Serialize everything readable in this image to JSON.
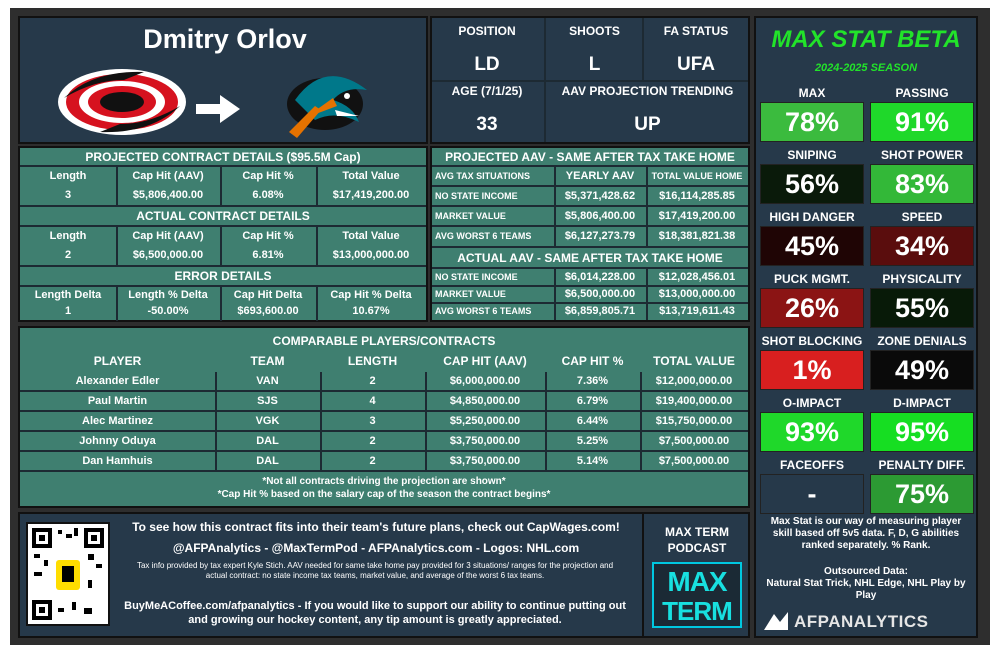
{
  "player": {
    "name": "Dmitry Orlov"
  },
  "bio": {
    "position_label": "POSITION",
    "position": "LD",
    "shoots_label": "SHOOTS",
    "shoots": "L",
    "fa_label": "FA STATUS",
    "fa": "UFA",
    "age_label": "AGE (7/1/25)",
    "age": "33",
    "trend_label": "AAV PROJECTION TRENDING",
    "trend": "UP"
  },
  "projected": {
    "title": "PROJECTED CONTRACT DETAILS ($95.5M Cap)",
    "headers": [
      "Length",
      "Cap Hit (AAV)",
      "Cap Hit %",
      "Total Value"
    ],
    "row": [
      "3",
      "$5,806,400.00",
      "6.08%",
      "$17,419,200.00"
    ]
  },
  "actual": {
    "title": "ACTUAL CONTRACT DETAILS",
    "headers": [
      "Length",
      "Cap Hit (AAV)",
      "Cap Hit %",
      "Total Value"
    ],
    "row": [
      "2",
      "$6,500,000.00",
      "6.81%",
      "$13,000,000.00"
    ]
  },
  "error": {
    "title": "ERROR DETAILS",
    "headers": [
      "Length Delta",
      "Length % Delta",
      "Cap Hit Delta",
      "Cap Hit % Delta"
    ],
    "row": [
      "1",
      "-50.00%",
      "$693,600.00",
      "10.67%"
    ]
  },
  "tax_projected": {
    "title": "PROJECTED AAV - SAME AFTER TAX TAKE HOME",
    "headers": [
      "AVG TAX SITUATIONS",
      "YEARLY AAV",
      "TOTAL VALUE HOME"
    ],
    "rows": [
      [
        "NO STATE INCOME",
        "$5,371,428.62",
        "$16,114,285.85"
      ],
      [
        "MARKET VALUE",
        "$5,806,400.00",
        "$17,419,200.00"
      ],
      [
        "AVG WORST 6 TEAMS",
        "$6,127,273.79",
        "$18,381,821.38"
      ]
    ]
  },
  "tax_actual": {
    "title": "ACTUAL AAV - SAME AFTER TAX TAKE HOME",
    "rows": [
      [
        "NO STATE INCOME",
        "$6,014,228.00",
        "$12,028,456.01"
      ],
      [
        "MARKET VALUE",
        "$6,500,000.00",
        "$13,000,000.00"
      ],
      [
        "AVG WORST 6 TEAMS",
        "$6,859,805.71",
        "$13,719,611.43"
      ]
    ]
  },
  "comparables": {
    "title": "COMPARABLE PLAYERS/CONTRACTS",
    "headers": [
      "PLAYER",
      "TEAM",
      "LENGTH",
      "CAP HIT (AAV)",
      "CAP HIT %",
      "TOTAL VALUE"
    ],
    "rows": [
      [
        "Alexander Edler",
        "VAN",
        "2",
        "$6,000,000.00",
        "7.36%",
        "$12,000,000.00"
      ],
      [
        "Paul Martin",
        "SJS",
        "4",
        "$4,850,000.00",
        "6.79%",
        "$19,400,000.00"
      ],
      [
        "Alec Martinez",
        "VGK",
        "3",
        "$5,250,000.00",
        "6.44%",
        "$15,750,000.00"
      ],
      [
        "Johnny Oduya",
        "DAL",
        "2",
        "$3,750,000.00",
        "5.25%",
        "$7,500,000.00"
      ],
      [
        "Dan Hamhuis",
        "DAL",
        "2",
        "$3,750,000.00",
        "5.14%",
        "$7,500,000.00"
      ]
    ],
    "note1": "*Not all contracts driving the projection are shown*",
    "note2": "*Cap Hit % based on the salary cap of the season the contract begins*"
  },
  "maxstat": {
    "title": "MAX STAT BETA",
    "season": "2024-2025 SEASON",
    "stats": [
      {
        "label": "MAX",
        "value": "78%",
        "color": "#3bbb3e"
      },
      {
        "label": "PASSING",
        "value": "91%",
        "color": "#1fd82a"
      },
      {
        "label": "SNIPING",
        "value": "56%",
        "color": "#0a1a0a"
      },
      {
        "label": "SHOT POWER",
        "value": "83%",
        "color": "#33b838"
      },
      {
        "label": "HIGH DANGER",
        "value": "45%",
        "color": "#1f0505"
      },
      {
        "label": "SPEED",
        "value": "34%",
        "color": "#5a0d0d"
      },
      {
        "label": "PUCK MGMT.",
        "value": "26%",
        "color": "#8b1414"
      },
      {
        "label": "PHYSICALITY",
        "value": "55%",
        "color": "#081a08"
      },
      {
        "label": "SHOT BLOCKING",
        "value": "1%",
        "color": "#d81f1f"
      },
      {
        "label": "ZONE DENIALS",
        "value": "49%",
        "color": "#0a0a0a"
      },
      {
        "label": "O-IMPACT",
        "value": "93%",
        "color": "#1fd82a"
      },
      {
        "label": "D-IMPACT",
        "value": "95%",
        "color": "#16de22"
      },
      {
        "label": "FACEOFFS",
        "value": "-",
        "color": "#26394a"
      },
      {
        "label": "PENALTY DIFF.",
        "value": "75%",
        "color": "#2c9a33"
      }
    ],
    "desc": "Max Stat is our way of measuring player skill based off 5v5 data. F, D, G abilities ranked separately. % Rank.",
    "sources_label": "Outsourced Data:",
    "sources": "Natural Stat Trick, NHL Edge, NHL Play by Play",
    "brand": "AFPANALYTICS"
  },
  "footer": {
    "line1": "To see how this contract fits into their team's future plans, check out CapWages.com!",
    "line2": "@AFPAnalytics - @MaxTermPod - AFPAnalytics.com - Logos: NHL.com",
    "line3": "Tax info provided by tax expert Kyle Stich. AAV needed for same take home pay provided for 3 situations/ ranges for the projection and actual contract: no state income tax teams, market value, and average of the worst 6 tax teams.",
    "line4": "BuyMeACoffee.com/afpanalytics - If you would like to support our ability to continue putting out and growing our hockey content, any tip amount is greatly appreciated.",
    "podcast": "MAX TERM PODCAST",
    "podcast_logo_top": "MAX",
    "podcast_logo_bottom": "TERM"
  }
}
